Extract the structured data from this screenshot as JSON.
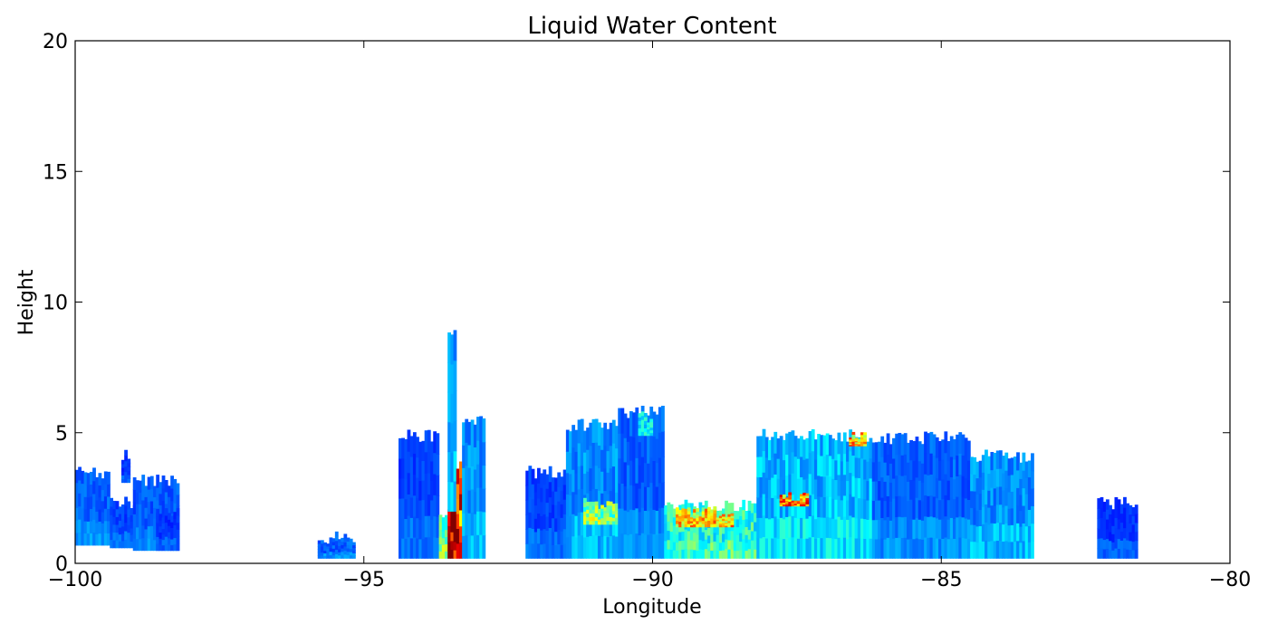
{
  "chart_data": {
    "type": "heatmap",
    "title": "Liquid Water Content",
    "xlabel": "Longitude",
    "ylabel": "Height",
    "xlim": [
      -100,
      -80
    ],
    "ylim": [
      0,
      20
    ],
    "x_ticks": [
      -100,
      -95,
      -90,
      -85,
      -80
    ],
    "x_tick_labels": [
      "−100",
      "−95",
      "−90",
      "−85",
      "−80"
    ],
    "y_ticks": [
      0,
      5,
      10,
      15,
      20
    ],
    "y_tick_labels": [
      "0",
      "5",
      "10",
      "15",
      "20"
    ],
    "grid": false,
    "colormap": "jet",
    "colors": {
      "low": "#00008f",
      "mid": "#0050ff",
      "high": "#00ffff",
      "peak": "#800000"
    },
    "regions": [
      {
        "x0": -100.0,
        "x1": -99.4,
        "y0": 0.7,
        "y1": 3.5,
        "intensity": 0.15
      },
      {
        "x0": -99.4,
        "x1": -98.8,
        "y0": 0.6,
        "y1": 2.3,
        "intensity": 0.12
      },
      {
        "x0": -99.2,
        "x1": -99.05,
        "y0": 3.1,
        "y1": 4.1,
        "intensity": 0.1
      },
      {
        "x0": -99.0,
        "x1": -98.2,
        "y0": 0.5,
        "y1": 3.2,
        "intensity": 0.14
      },
      {
        "x0": -98.6,
        "x1": -98.2,
        "y0": 0.5,
        "y1": 2.0,
        "intensity": 0.1
      },
      {
        "x0": -95.8,
        "x1": -95.15,
        "y0": 0.2,
        "y1": 1.0,
        "intensity": 0.15
      },
      {
        "x0": -94.4,
        "x1": -93.7,
        "y0": 0.2,
        "y1": 4.9,
        "intensity": 0.12
      },
      {
        "x0": -93.7,
        "x1": -93.55,
        "y0": 0.2,
        "y1": 2.0,
        "intensity": 0.4
      },
      {
        "x0": -93.55,
        "x1": -93.4,
        "y0": 0.2,
        "y1": 2.0,
        "intensity": 1.0
      },
      {
        "x0": -93.55,
        "x1": -93.4,
        "y0": 2.0,
        "y1": 9.0,
        "intensity": 0.2
      },
      {
        "x0": -93.4,
        "x1": -93.3,
        "y0": 0.2,
        "y1": 3.7,
        "intensity": 0.75
      },
      {
        "x0": -93.3,
        "x1": -92.9,
        "y0": 0.2,
        "y1": 5.4,
        "intensity": 0.2
      },
      {
        "x0": -92.2,
        "x1": -91.5,
        "y0": 0.2,
        "y1": 3.5,
        "intensity": 0.12
      },
      {
        "x0": -91.5,
        "x1": -90.6,
        "y0": 0.2,
        "y1": 5.3,
        "intensity": 0.2
      },
      {
        "x0": -91.2,
        "x1": -90.5,
        "y0": 1.5,
        "y1": 2.3,
        "intensity": 0.45
      },
      {
        "x0": -90.6,
        "x1": -89.8,
        "y0": 0.2,
        "y1": 5.8,
        "intensity": 0.15
      },
      {
        "x0": -90.25,
        "x1": -90.0,
        "y0": 4.9,
        "y1": 5.6,
        "intensity": 0.3
      },
      {
        "x0": -89.8,
        "x1": -88.2,
        "y0": 0.2,
        "y1": 2.2,
        "intensity": 0.35
      },
      {
        "x0": -89.6,
        "x1": -88.6,
        "y0": 1.4,
        "y1": 2.0,
        "intensity": 0.6
      },
      {
        "x0": -88.2,
        "x1": -86.2,
        "y0": 0.2,
        "y1": 4.9,
        "intensity": 0.25
      },
      {
        "x0": -87.8,
        "x1": -87.3,
        "y0": 2.2,
        "y1": 2.5,
        "intensity": 0.7
      },
      {
        "x0": -86.6,
        "x1": -86.3,
        "y0": 4.5,
        "y1": 4.9,
        "intensity": 0.65
      },
      {
        "x0": -86.2,
        "x1": -84.5,
        "y0": 0.2,
        "y1": 4.8,
        "intensity": 0.15
      },
      {
        "x0": -84.5,
        "x1": -83.4,
        "y0": 0.2,
        "y1": 4.1,
        "intensity": 0.2
      },
      {
        "x0": -82.3,
        "x1": -81.6,
        "y0": 0.2,
        "y1": 2.3,
        "intensity": 0.1
      }
    ]
  }
}
